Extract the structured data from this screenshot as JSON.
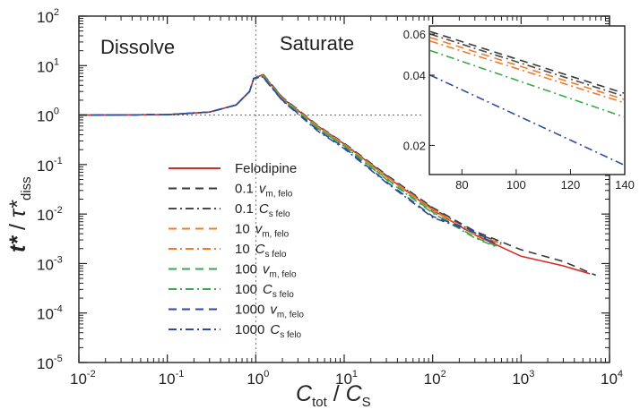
{
  "chart_data": {
    "type": "line",
    "x_scale": "log",
    "y_scale": "log",
    "xlim": [
      0.01,
      10000
    ],
    "ylim": [
      1e-05,
      100
    ],
    "x_ticks": [
      "10^-2",
      "10^-1",
      "10^0",
      "10^1",
      "10^2",
      "10^3",
      "10^4"
    ],
    "y_ticks": [
      "10^2",
      "10^1",
      "10^0",
      "10^-1",
      "10^-2",
      "10^-3",
      "10^-4",
      "10^-5"
    ],
    "xlabel": {
      "main": "C",
      "sub": "tot",
      "sep": " / ",
      "main2": "C",
      "sub2": "S"
    },
    "ylabel": {
      "main": "t*",
      "sep": " / ",
      "main2": "τ*",
      "sub2": "diss"
    },
    "regions": {
      "left": "Dissolve",
      "right": "Saturate"
    },
    "reference_lines": {
      "x": 1,
      "y": 1
    },
    "grid": false,
    "legend_position": "center-left",
    "series": [
      {
        "label_main": "Felodipine",
        "label_sub": "",
        "color": "#d42a2a",
        "dash": "solid",
        "points": [
          [
            0.01,
            1.0
          ],
          [
            0.1,
            1.02
          ],
          [
            0.3,
            1.15
          ],
          [
            0.6,
            1.6
          ],
          [
            0.85,
            3.0
          ],
          [
            0.95,
            5.5
          ],
          [
            1.2,
            6.5
          ],
          [
            2,
            2.2
          ],
          [
            5,
            0.6
          ],
          [
            10,
            0.26
          ],
          [
            30,
            0.058
          ],
          [
            100,
            0.012
          ],
          [
            300,
            0.0038
          ],
          [
            1000,
            0.0014
          ],
          [
            3000,
            0.0009
          ],
          [
            6000,
            0.00062
          ]
        ]
      },
      {
        "label_main": "0.1",
        "label_sym": "v",
        "label_sub": "m, felo",
        "color": "#3a3a3a",
        "dash": "longdash",
        "points": [
          [
            0.01,
            1.0
          ],
          [
            0.1,
            1.02
          ],
          [
            0.3,
            1.15
          ],
          [
            0.6,
            1.6
          ],
          [
            0.85,
            3.0
          ],
          [
            0.95,
            5.5
          ],
          [
            1.2,
            6.8
          ],
          [
            2,
            2.3
          ],
          [
            5,
            0.62
          ],
          [
            10,
            0.27
          ],
          [
            30,
            0.062
          ],
          [
            100,
            0.0135
          ],
          [
            300,
            0.0045
          ],
          [
            1000,
            0.0019
          ],
          [
            3000,
            0.0011
          ],
          [
            7000,
            0.00058
          ]
        ]
      },
      {
        "label_main": "0.1",
        "label_sym": "C",
        "label_sub": "s felo",
        "color": "#4a4a4a",
        "dash": "dashdot",
        "points": [
          [
            0.01,
            1.0
          ],
          [
            0.1,
            1.02
          ],
          [
            0.3,
            1.15
          ],
          [
            0.6,
            1.6
          ],
          [
            0.85,
            3.0
          ],
          [
            0.95,
            5.5
          ],
          [
            1.2,
            6.6
          ],
          [
            2,
            2.25
          ],
          [
            5,
            0.6
          ],
          [
            10,
            0.26
          ],
          [
            30,
            0.06
          ],
          [
            100,
            0.013
          ],
          [
            300,
            0.0042
          ],
          [
            600,
            0.0026
          ]
        ]
      },
      {
        "label_main": "10",
        "label_sym": "v",
        "label_sub": "m, felo",
        "color": "#f07a2c",
        "dash": "longdash",
        "points": [
          [
            0.01,
            1.0
          ],
          [
            0.1,
            1.02
          ],
          [
            0.3,
            1.15
          ],
          [
            0.6,
            1.6
          ],
          [
            0.85,
            3.0
          ],
          [
            0.95,
            5.5
          ],
          [
            1.2,
            6.5
          ],
          [
            2,
            2.2
          ],
          [
            5,
            0.6
          ],
          [
            10,
            0.26
          ],
          [
            30,
            0.058
          ],
          [
            100,
            0.0125
          ],
          [
            300,
            0.004
          ],
          [
            600,
            0.0025
          ]
        ]
      },
      {
        "label_main": "10",
        "label_sym": "C",
        "label_sub": "s felo",
        "color": "#f07a2c",
        "dash": "dashdot",
        "points": [
          [
            0.01,
            1.0
          ],
          [
            0.1,
            1.02
          ],
          [
            0.3,
            1.15
          ],
          [
            0.6,
            1.6
          ],
          [
            0.85,
            3.0
          ],
          [
            0.95,
            5.5
          ],
          [
            1.2,
            6.4
          ],
          [
            2,
            2.15
          ],
          [
            5,
            0.58
          ],
          [
            10,
            0.25
          ],
          [
            30,
            0.056
          ],
          [
            100,
            0.012
          ],
          [
            300,
            0.0038
          ],
          [
            600,
            0.0024
          ]
        ]
      },
      {
        "label_main": "100",
        "label_sym": "v",
        "label_sub": "m, felo",
        "color": "#3aa84a",
        "dash": "longdash",
        "points": [
          [
            0.01,
            1.0
          ],
          [
            0.1,
            1.02
          ],
          [
            0.3,
            1.15
          ],
          [
            0.6,
            1.6
          ],
          [
            0.85,
            3.0
          ],
          [
            0.95,
            5.5
          ],
          [
            1.2,
            6.3
          ],
          [
            2,
            2.1
          ],
          [
            5,
            0.55
          ],
          [
            10,
            0.24
          ],
          [
            30,
            0.052
          ],
          [
            100,
            0.011
          ],
          [
            300,
            0.0034
          ],
          [
            550,
            0.0022
          ]
        ]
      },
      {
        "label_main": "100",
        "label_sym": "C",
        "label_sub": "s felo",
        "color": "#3aa84a",
        "dash": "dashdot",
        "points": [
          [
            0.01,
            1.0
          ],
          [
            0.1,
            1.02
          ],
          [
            0.3,
            1.15
          ],
          [
            0.6,
            1.6
          ],
          [
            0.85,
            3.0
          ],
          [
            0.95,
            5.5
          ],
          [
            1.2,
            6.2
          ],
          [
            2,
            2.05
          ],
          [
            5,
            0.54
          ],
          [
            10,
            0.235
          ],
          [
            30,
            0.05
          ],
          [
            100,
            0.0105
          ],
          [
            300,
            0.0033
          ],
          [
            550,
            0.0021
          ]
        ]
      },
      {
        "label_main": "1000",
        "label_sym": "v",
        "label_sub": "m, felo",
        "color": "#2f4a9c",
        "dash": "longdash",
        "points": [
          [
            0.01,
            1.0
          ],
          [
            0.1,
            1.02
          ],
          [
            0.3,
            1.15
          ],
          [
            0.6,
            1.6
          ],
          [
            0.85,
            3.0
          ],
          [
            0.95,
            5.5
          ],
          [
            1.2,
            6.0
          ],
          [
            2,
            2.0
          ],
          [
            5,
            0.5
          ],
          [
            10,
            0.22
          ],
          [
            30,
            0.045
          ],
          [
            100,
            0.009
          ],
          [
            300,
            0.0045
          ],
          [
            500,
            0.0026
          ]
        ]
      },
      {
        "label_main": "1000",
        "label_sym": "C",
        "label_sub": "s felo",
        "color": "#2f4a9c",
        "dash": "dashdot",
        "points": [
          [
            0.01,
            1.0
          ],
          [
            0.1,
            1.02
          ],
          [
            0.3,
            1.15
          ],
          [
            0.6,
            1.6
          ],
          [
            0.85,
            3.0
          ],
          [
            0.95,
            5.5
          ],
          [
            1.2,
            5.9
          ],
          [
            2,
            1.95
          ],
          [
            5,
            0.48
          ],
          [
            10,
            0.21
          ],
          [
            30,
            0.043
          ],
          [
            100,
            0.0085
          ],
          [
            300,
            0.0042
          ],
          [
            500,
            0.0025
          ]
        ]
      }
    ],
    "inset": {
      "xlim": [
        68,
        140
      ],
      "ylim": [
        0.015,
        0.065
      ],
      "y_scale": "log",
      "x_ticks": [
        "80",
        "100",
        "120",
        "140"
      ],
      "y_ticks": [
        "0.06",
        "0.04",
        "0.02"
      ],
      "series_lines": [
        {
          "color": "#3a3a3a",
          "dash": "longdash",
          "y_start": 0.0615,
          "y_end": 0.0335
        },
        {
          "color": "#4a4a4a",
          "dash": "dashdot",
          "y_start": 0.06,
          "y_end": 0.0325
        },
        {
          "color": "#f07a2c",
          "dash": "longdash",
          "y_start": 0.058,
          "y_end": 0.0315
        },
        {
          "color": "#f07a2c",
          "dash": "dashdot",
          "y_start": 0.056,
          "y_end": 0.0305
        },
        {
          "color": "#3aa84a",
          "dash": "dashdot",
          "y_start": 0.051,
          "y_end": 0.0265
        },
        {
          "color": "#2f4a9c",
          "dash": "dashdot",
          "y_start": 0.04,
          "y_end": 0.0165
        }
      ]
    }
  }
}
